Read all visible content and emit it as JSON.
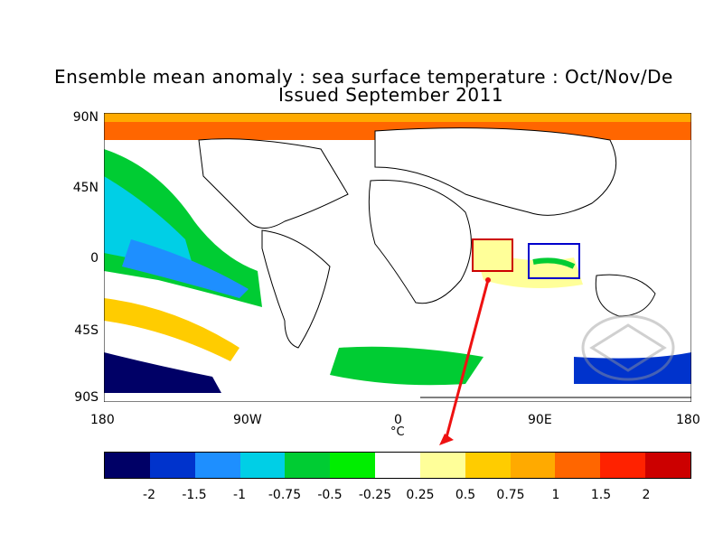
{
  "title": "Ensemble mean anomaly : sea surface temperature : Oct/Nov/De",
  "subtitle": "Issued September 2011",
  "lat_labels": [
    "90N",
    "45N",
    "0",
    "45S",
    "90S"
  ],
  "lon_labels": [
    "180",
    "90W",
    "0",
    "90E",
    "180"
  ],
  "unit": "°C",
  "colorbar": {
    "colors": [
      "#000066",
      "#0033cc",
      "#1e8fff",
      "#00cfe6",
      "#00cc33",
      "#00ee00",
      "#ffffff",
      "#ffff99",
      "#ffcc00",
      "#ffaa00",
      "#ff6600",
      "#ff2200",
      "#cc0000"
    ],
    "ticks": [
      "-2",
      "-1.5",
      "-1",
      "-0.75",
      "-0.5",
      "-0.25",
      "0.25",
      "0.5",
      "0.75",
      "1",
      "1.5",
      "2"
    ]
  },
  "highlight_colors": {
    "red_box": "#cc0000",
    "blue_box": "#0000cc",
    "arrow": "#ee1111"
  }
}
